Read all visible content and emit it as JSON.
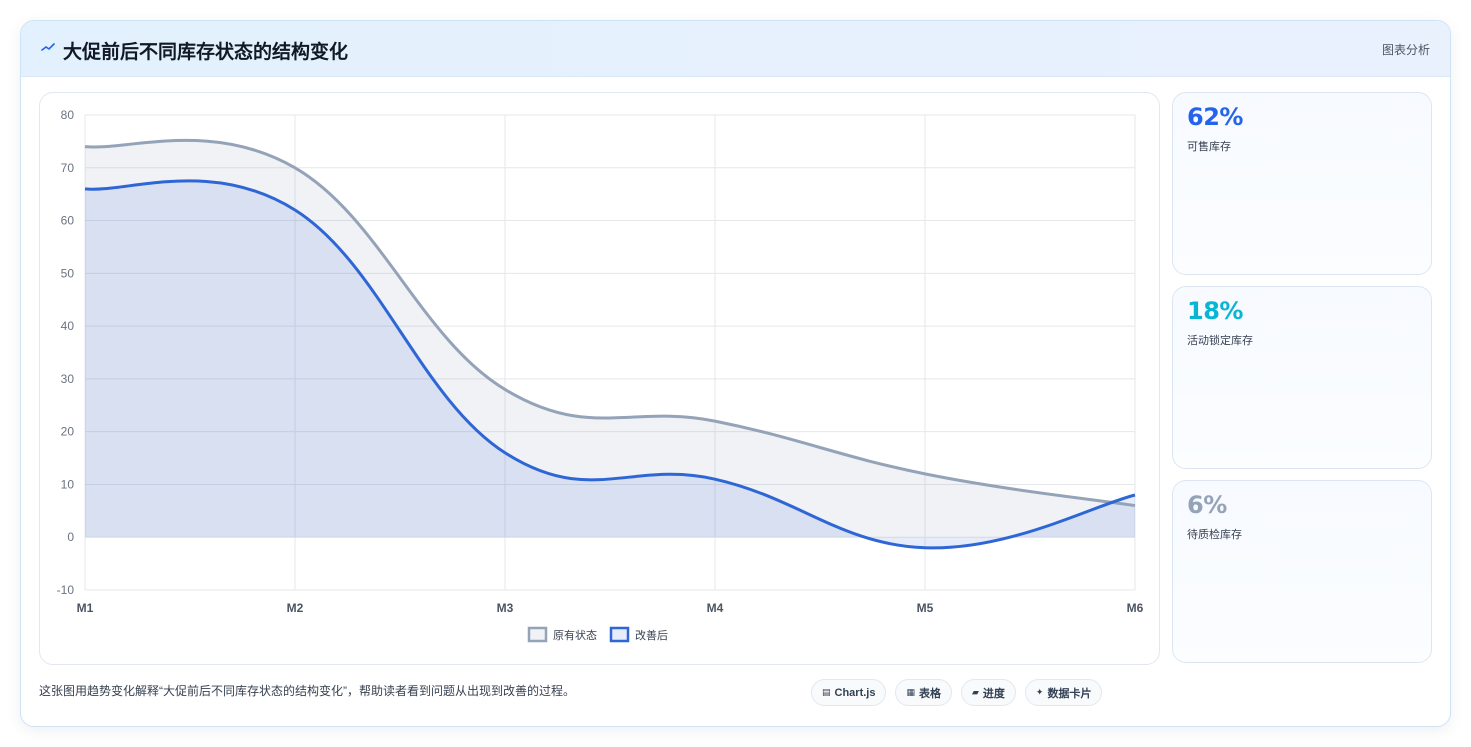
{
  "header": {
    "title": "大促前后不同库存状态的结构变化",
    "right_label": "图表分析",
    "icon": "trend-line-icon"
  },
  "stats": [
    {
      "value": "62%",
      "label": "可售库存",
      "color": "#2563eb"
    },
    {
      "value": "18%",
      "label": "活动锁定库存",
      "color": "#06b6d4"
    },
    {
      "value": "6%",
      "label": "待质检库存",
      "color": "#94a3b8"
    }
  ],
  "footer": {
    "description": "这张图用趋势变化解释“大促前后不同库存状态的结构变化”，帮助读者看到问题从出现到改善的过程。",
    "chips": [
      {
        "icon": "chart-icon",
        "glyph": "▤",
        "label": "Chart.js"
      },
      {
        "icon": "table-icon",
        "glyph": "▦",
        "label": "表格"
      },
      {
        "icon": "progress-icon",
        "glyph": "▰",
        "label": "进度"
      },
      {
        "icon": "card-icon",
        "glyph": "✦",
        "label": "数据卡片"
      }
    ]
  },
  "chart_data": {
    "type": "area",
    "x": [
      "M1",
      "M2",
      "M3",
      "M4",
      "M5",
      "M6"
    ],
    "ylim": [
      -10,
      80
    ],
    "yticks": [
      -10,
      0,
      10,
      20,
      30,
      40,
      50,
      60,
      70,
      80
    ],
    "grid": true,
    "legend_position": "bottom",
    "series": [
      {
        "name": "原有状态",
        "values": [
          74,
          70,
          28,
          22,
          12,
          6
        ],
        "color": "#94a3b8"
      },
      {
        "name": "改善后",
        "values": [
          66,
          62,
          16,
          11,
          -2,
          8
        ],
        "color": "#2f66d6"
      }
    ]
  }
}
